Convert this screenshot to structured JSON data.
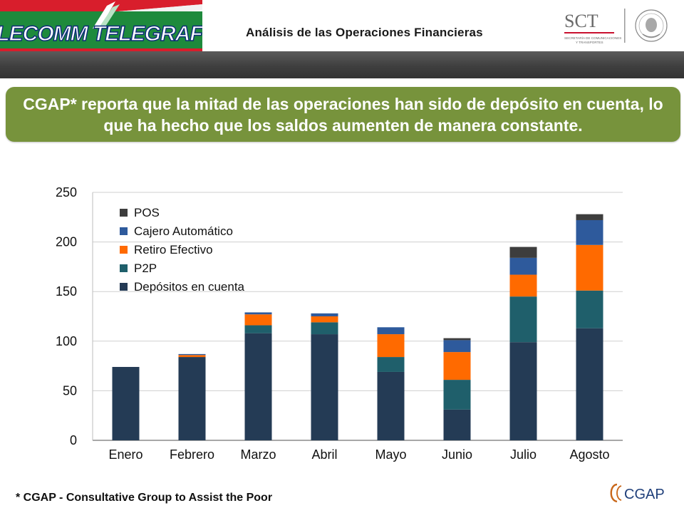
{
  "header": {
    "title": "Análisis de las Operaciones Financieras",
    "logo_left_text": "TELECOMM TELEGRAFOS",
    "logo_right_text": "SCT",
    "logo_right_subtext_1": "SECRETARÍA DE COMUNICACIONES",
    "logo_right_subtext_2": "Y TRANSPORTES"
  },
  "banner": {
    "text": "CGAP* reporta que la mitad de las operaciones han sido de depósito en cuenta, lo que ha hecho que los saldos aumenten de manera constante.",
    "color": "#77933c"
  },
  "footnote": "* CGAP - Consultative Group to Assist the Poor",
  "footer_logo_text": "CGAP",
  "chart_data": {
    "type": "bar",
    "stacked": true,
    "categories": [
      "Enero",
      "Febrero",
      "Marzo",
      "Abril",
      "Mayo",
      "Junio",
      "Julio",
      "Agosto"
    ],
    "series": [
      {
        "name": "Depósitos en cuenta",
        "color": "#243b55",
        "values": [
          74,
          84,
          108,
          107,
          69,
          31,
          99,
          113
        ]
      },
      {
        "name": "P2P",
        "color": "#1f5f6b",
        "values": [
          0,
          0,
          8,
          12,
          15,
          30,
          46,
          38
        ]
      },
      {
        "name": "Retiro Efectivo",
        "color": "#ff6a00",
        "values": [
          0,
          2,
          11,
          6,
          23,
          28,
          22,
          46
        ]
      },
      {
        "name": "Cajero Automático",
        "color": "#2e5a9c",
        "values": [
          0,
          1,
          2,
          3,
          7,
          12,
          17,
          25
        ]
      },
      {
        "name": "POS",
        "color": "#3d3d3d",
        "values": [
          0,
          0,
          0,
          0,
          0,
          2,
          11,
          6
        ]
      }
    ],
    "ylim": [
      0,
      250
    ],
    "yticks": [
      0,
      50,
      100,
      150,
      200,
      250
    ],
    "grid": true,
    "legend_position": "top-left",
    "title": "",
    "xlabel": "",
    "ylabel": ""
  }
}
